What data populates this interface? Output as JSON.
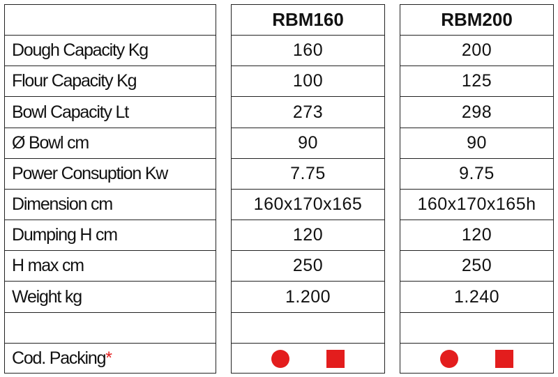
{
  "table": {
    "header": [
      "RBM160",
      "RBM200"
    ],
    "rows": [
      [
        "Dough Capacity Kg",
        "160",
        "200"
      ],
      [
        "Flour Capacity Kg",
        "100",
        "125"
      ],
      [
        "Bowl Capacity Lt",
        "273",
        "298"
      ],
      [
        "Ø Bowl cm",
        "90",
        "90"
      ],
      [
        "Power Consuption Kw",
        "7.75",
        "9.75"
      ],
      [
        "Dimension cm",
        "160x170x165",
        "160x170x165h"
      ],
      [
        "Dumping H cm",
        "120",
        "120"
      ],
      [
        "H max cm",
        "250",
        "250"
      ],
      [
        "Weight kg",
        "1.200",
        "1.240"
      ]
    ],
    "footer": {
      "label": "Cod. Packing",
      "mark": "*"
    }
  }
}
